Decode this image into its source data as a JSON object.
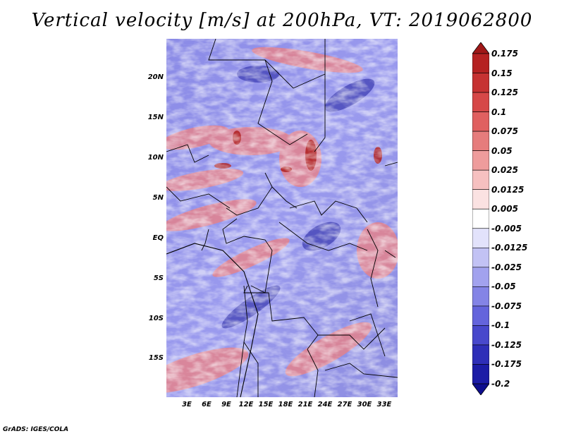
{
  "title": "Vertical velocity [m/s] at 200hPa, VT: 2019062800",
  "credit": "GrADS: IGES/COLA",
  "lat_ticks": [
    "20N",
    "15N",
    "10N",
    "5N",
    "EQ",
    "5S",
    "10S",
    "15S"
  ],
  "lon_ticks": [
    "3E",
    "6E",
    "9E",
    "12E",
    "15E",
    "18E",
    "21E",
    "24E",
    "27E",
    "30E",
    "33E"
  ],
  "colorbar": {
    "labels": [
      "0.175",
      "0.15",
      "0.125",
      "0.1",
      "0.075",
      "0.05",
      "0.025",
      "0.0125",
      "0.005",
      "-0.005",
      "-0.0125",
      "-0.025",
      "-0.05",
      "-0.075",
      "-0.1",
      "-0.125",
      "-0.175",
      "-0.2"
    ],
    "colors": [
      "#a01818",
      "#b52222",
      "#c63232",
      "#d64848",
      "#e06060",
      "#e67c7c",
      "#ee9c9c",
      "#f6c0c0",
      "#fbe2e2",
      "#ffffff",
      "#e2e2fb",
      "#c2c2f4",
      "#a2a2ee",
      "#8484e6",
      "#6464dc",
      "#4848cc",
      "#2e2eb8",
      "#1c1ca6",
      "#0e0e8e"
    ]
  }
}
